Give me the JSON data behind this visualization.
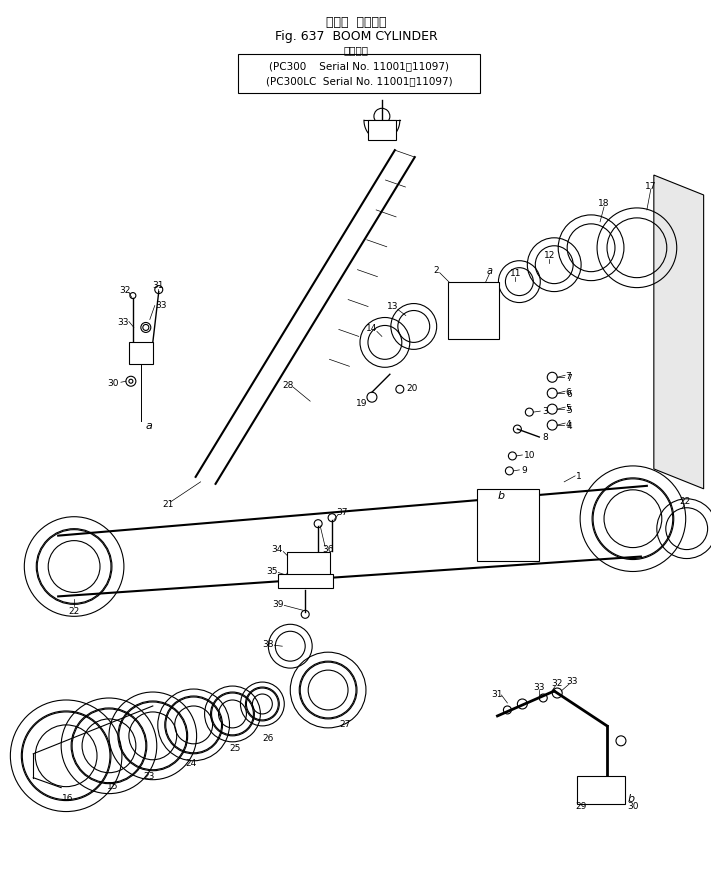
{
  "title_japanese": "ブーム  シリンダ",
  "title_english": "Fig. 637  BOOM CYLINDER",
  "subtitle_japanese": "適用号機",
  "model_line1": "(PC300    Serial No. 11001～11097)",
  "model_line2": "(PC300LC  Serial No. 11001～11097)",
  "bg_color": "#ffffff",
  "line_color": "#000000",
  "fig_width": 7.12,
  "fig_height": 8.87
}
